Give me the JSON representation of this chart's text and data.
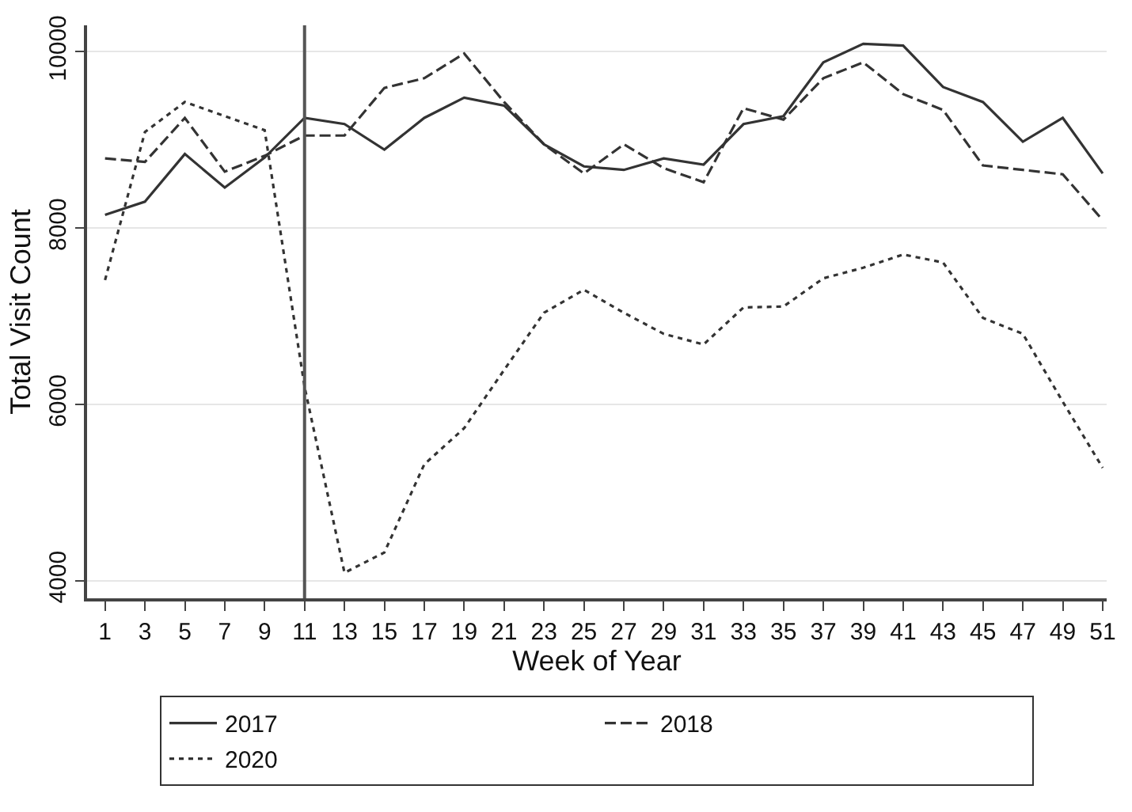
{
  "chart_data": {
    "type": "line",
    "xlabel": "Week of Year",
    "ylabel": "Total Visit Count",
    "x": [
      1,
      3,
      5,
      7,
      9,
      11,
      13,
      15,
      17,
      19,
      21,
      23,
      25,
      27,
      29,
      31,
      33,
      35,
      37,
      39,
      41,
      43,
      45,
      47,
      49,
      51
    ],
    "series": [
      {
        "name": "2017",
        "color": "#333333",
        "line_style": "solid",
        "values": [
          8150,
          8300,
          8840,
          8460,
          8800,
          9250,
          9180,
          8890,
          9250,
          9480,
          9390,
          8950,
          8700,
          8660,
          8790,
          8720,
          9180,
          9270,
          9880,
          10090,
          10070,
          9600,
          9430,
          8980,
          9250,
          8620
        ]
      },
      {
        "name": "2018",
        "color": "#333333",
        "line_style": "dashed",
        "values": [
          8790,
          8750,
          9250,
          8640,
          8820,
          9050,
          9050,
          9590,
          9700,
          9980,
          9430,
          8950,
          8620,
          8950,
          8680,
          8520,
          9360,
          9230,
          9700,
          9880,
          9520,
          9340,
          8710,
          8660,
          8610,
          8090
        ]
      },
      {
        "name": "2020",
        "color": "#333333",
        "line_style": "dotted",
        "values": [
          7410,
          9090,
          9430,
          9270,
          9110,
          6200,
          4090,
          4320,
          5320,
          5730,
          6390,
          7040,
          7300,
          7040,
          6800,
          6680,
          7100,
          7110,
          7430,
          7550,
          7700,
          7610,
          6980,
          6800,
          6030,
          5280
        ]
      }
    ],
    "xlim": [
      0.1,
      51.2
    ],
    "xticks": [
      1,
      3,
      5,
      7,
      9,
      11,
      13,
      15,
      17,
      19,
      21,
      23,
      25,
      27,
      29,
      31,
      33,
      35,
      37,
      39,
      41,
      43,
      45,
      47,
      49,
      51
    ],
    "ylim": [
      3800,
      10300
    ],
    "yticks": [
      4000,
      6000,
      8000,
      10000
    ],
    "ref_lines": [
      {
        "axis": "x",
        "value": 11,
        "color": "#555555",
        "line_style": "solid"
      }
    ],
    "grid": "y",
    "legend": "bottom",
    "marker": "none"
  }
}
